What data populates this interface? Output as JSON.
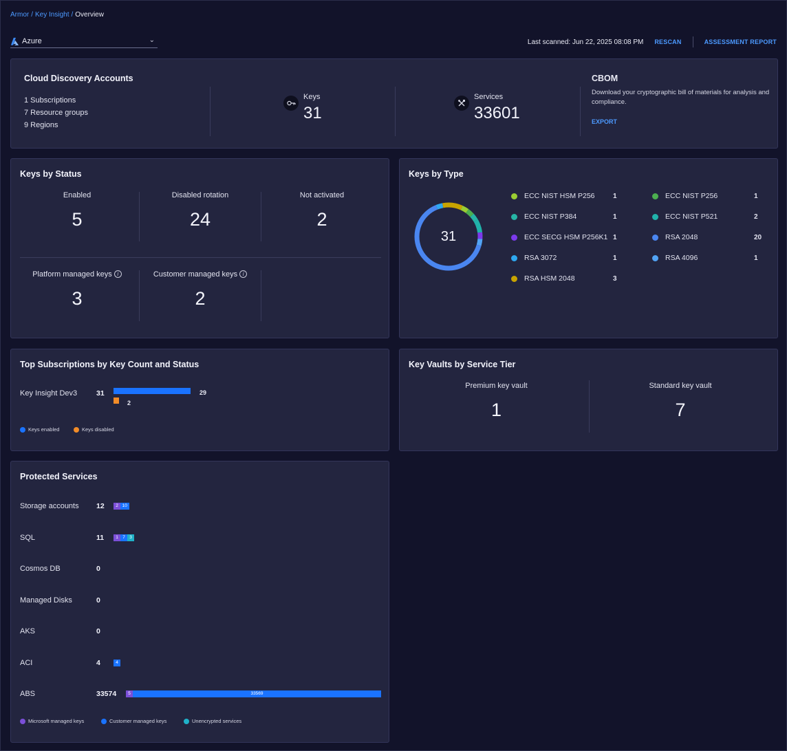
{
  "breadcrumb": [
    "Armor",
    "Key Insight",
    "Overview"
  ],
  "cloud_select": {
    "value": "Azure",
    "icon": "azure-logo-icon"
  },
  "topbar": {
    "last_scanned": "Last scanned: Jun 22, 2025 08:08 PM",
    "rescan": "RESCAN",
    "assessment_report": "ASSESSMENT REPORT"
  },
  "cloud_discovery": {
    "title": "Cloud Discovery Accounts",
    "subscriptions": "1 Subscriptions",
    "resource_groups": "7 Resource groups",
    "regions": "9 Regions",
    "keys_label": "Keys",
    "keys_value": "31",
    "keys_icon": "key-icon",
    "services_label": "Services",
    "services_value": "33601",
    "services_icon": "tools-icon"
  },
  "cbom": {
    "title": "CBOM",
    "description": "Download your cryptographic bill of materials for analysis and compliance.",
    "export": "EXPORT"
  },
  "keys_by_status": {
    "title": "Keys by Status",
    "enabled_label": "Enabled",
    "enabled_value": "5",
    "disabled_rotation_label": "Disabled rotation",
    "disabled_rotation_value": "24",
    "not_activated_label": "Not activated",
    "not_activated_value": "2",
    "platform_managed_label": "Platform managed keys",
    "platform_managed_value": "3",
    "customer_managed_label": "Customer managed keys",
    "customer_managed_value": "2"
  },
  "keys_by_type": {
    "title": "Keys by Type",
    "total": "31",
    "items": [
      {
        "name": "ECC NIST HSM P256",
        "count": "1",
        "color": "#9acd32"
      },
      {
        "name": "ECC NIST P256",
        "count": "1",
        "color": "#4caf50"
      },
      {
        "name": "ECC NIST P384",
        "count": "1",
        "color": "#26b5a6"
      },
      {
        "name": "ECC NIST P521",
        "count": "2",
        "color": "#20b2aa"
      },
      {
        "name": "ECC SECG HSM P256K1",
        "count": "1",
        "color": "#7c3aed"
      },
      {
        "name": "RSA 2048",
        "count": "20",
        "color": "#4a86f0"
      },
      {
        "name": "RSA 3072",
        "count": "1",
        "color": "#2ea8f0"
      },
      {
        "name": "RSA 4096",
        "count": "1",
        "color": "#52a4f5"
      },
      {
        "name": "RSA HSM 2048",
        "count": "3",
        "color": "#c8a400"
      }
    ]
  },
  "top_subscriptions": {
    "title": "Top Subscriptions by Key Count and Status",
    "rows": [
      {
        "name": "Key Insight Dev3",
        "total": "31",
        "enabled": "29",
        "disabled": "2"
      }
    ],
    "legend_enabled": "Keys enabled",
    "legend_disabled": "Keys disabled",
    "color_enabled": "#1a73ff",
    "color_disabled": "#f28c28"
  },
  "key_vaults": {
    "title": "Key Vaults by Service Tier",
    "premium_label": "Premium key vault",
    "premium_value": "1",
    "standard_label": "Standard key vault",
    "standard_value": "7"
  },
  "protected_services": {
    "title": "Protected Services",
    "rows": [
      {
        "name": "Storage accounts",
        "total": "12",
        "segments": [
          {
            "type": "microsoft",
            "value": 2
          },
          {
            "type": "customer",
            "value": 10
          }
        ]
      },
      {
        "name": "SQL",
        "total": "11",
        "segments": [
          {
            "type": "microsoft",
            "value": 1
          },
          {
            "type": "customer",
            "value": 7
          },
          {
            "type": "unencrypted",
            "value": 3
          }
        ]
      },
      {
        "name": "Cosmos DB",
        "total": "0",
        "segments": []
      },
      {
        "name": "Managed Disks",
        "total": "0",
        "segments": []
      },
      {
        "name": "AKS",
        "total": "0",
        "segments": []
      },
      {
        "name": "ACI",
        "total": "4",
        "segments": [
          {
            "type": "customer",
            "value": 4
          }
        ]
      },
      {
        "name": "ABS",
        "total": "33574",
        "segments": [
          {
            "type": "microsoft",
            "value": 5
          },
          {
            "type": "customer",
            "value": 33569
          }
        ]
      }
    ],
    "legend_microsoft": "Microsoft managed keys",
    "legend_customer": "Customer managed keys",
    "legend_unencrypted": "Unencrypted services",
    "color_microsoft": "#7b4fd8",
    "color_customer": "#1a73ff",
    "color_unencrypted": "#1fb2c9"
  }
}
